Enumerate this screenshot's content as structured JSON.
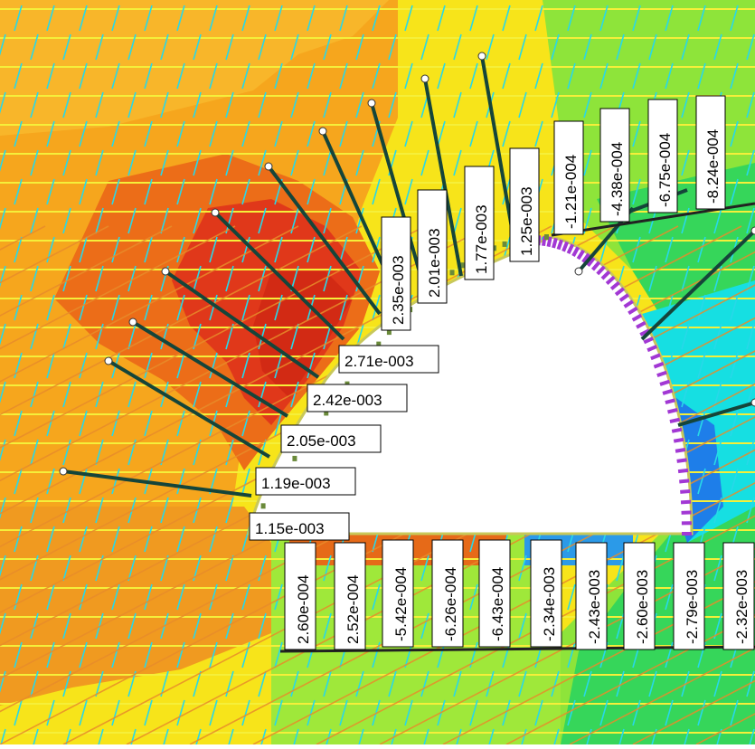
{
  "colors": {
    "background": "#f7e41a",
    "contour_orange": "#f6a61d",
    "contour_dark_orange": "#ec6d18",
    "contour_red": "#e0381a",
    "contour_green": "#36d65a",
    "contour_light_green": "#8ee43a",
    "contour_cyan": "#16dfe2",
    "contour_blue": "#1e7ee9",
    "excavation": "#ffffff",
    "bolt": "#15453a",
    "liner_purple": "#a238d4",
    "grid_cyan": "#28d8e8",
    "grid_yellow": "#f5ef3a",
    "grid_orange": "#e88c2a"
  },
  "labels": {
    "roof": [
      "2.35e-003",
      "2.01e-003",
      "1.77e-003",
      "1.25e-003",
      "-1.21e-004",
      "-4.38e-004",
      "-6.75e-004",
      "-8.24e-004"
    ],
    "wall": [
      "2.71e-003",
      "2.42e-003",
      "2.05e-003",
      "1.19e-003",
      "1.15e-003"
    ],
    "floor": [
      "2.60e-004",
      "2.52e-004",
      "-5.42e-004",
      "-6.26e-004",
      "-6.43e-004",
      "-2.34e-003",
      "-2.43e-003",
      "-2.60e-003",
      "-2.79e-003",
      "-2.32e-003"
    ]
  },
  "icons": {
    "bolt_end": "circle-end-icon"
  }
}
